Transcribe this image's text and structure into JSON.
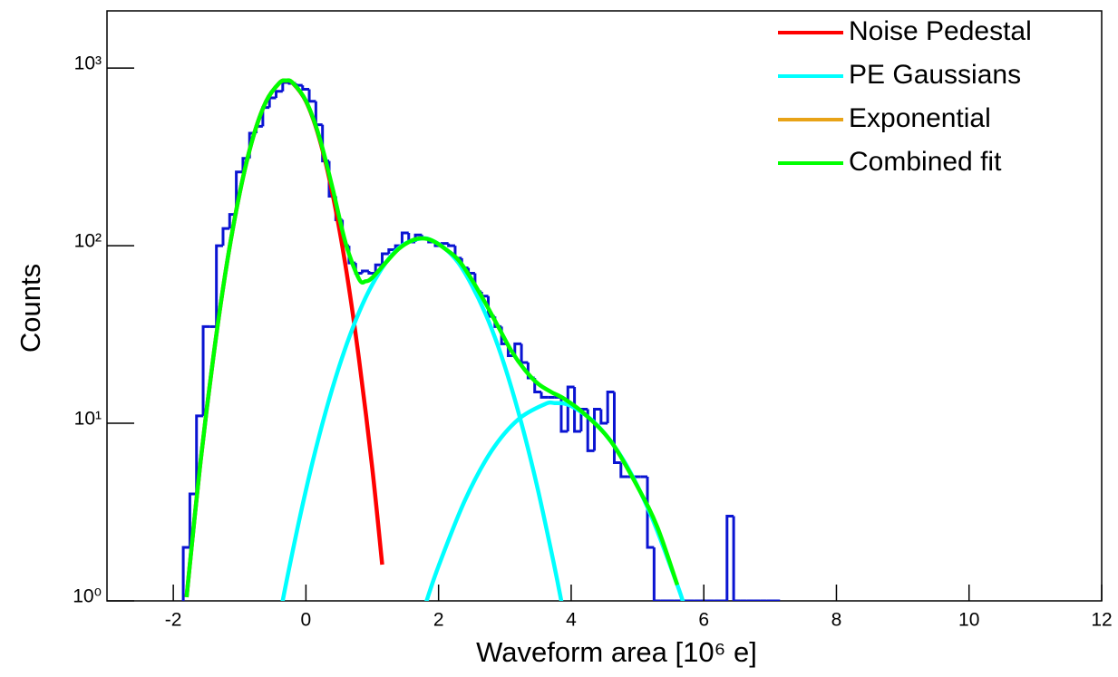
{
  "chart_data": {
    "type": "histogram",
    "xlabel": "Waveform area [10⁶ e]",
    "ylabel": "Counts",
    "xlim": [
      -3,
      12
    ],
    "xticks": [
      -2,
      0,
      2,
      4,
      6,
      8,
      10,
      12
    ],
    "ylim": [
      1,
      2100
    ],
    "yscale": "log",
    "yticks": [
      {
        "value": 1,
        "label": "10⁰"
      },
      {
        "value": 10,
        "label": "10¹"
      },
      {
        "value": 100,
        "label": "10²"
      },
      {
        "value": 1000,
        "label": "10³"
      }
    ],
    "legend": "upper right",
    "histogram": {
      "color": "#0a14d2",
      "bins": [
        -1.85,
        -1.75,
        -1.65,
        -1.55,
        -1.45,
        -1.35,
        -1.25,
        -1.15,
        -1.05,
        -0.95,
        -0.85,
        -0.75,
        -0.65,
        -0.55,
        -0.45,
        -0.35,
        -0.25,
        -0.15,
        -0.05,
        0.05,
        0.15,
        0.25,
        0.35,
        0.45,
        0.55,
        0.65,
        0.75,
        0.85,
        0.95,
        1.05,
        1.15,
        1.25,
        1.35,
        1.45,
        1.55,
        1.65,
        1.75,
        1.85,
        1.95,
        2.05,
        2.15,
        2.25,
        2.35,
        2.45,
        2.55,
        2.65,
        2.75,
        2.85,
        2.95,
        3.05,
        3.15,
        3.25,
        3.35,
        3.45,
        3.55,
        3.65,
        3.75,
        3.85,
        3.95,
        4.05,
        4.15,
        4.25,
        4.35,
        4.45,
        4.55,
        4.65,
        4.75,
        4.85,
        4.95,
        5.05,
        5.15,
        5.25,
        5.35,
        5.45,
        5.55,
        5.65,
        5.75,
        5.85,
        5.95,
        6.05,
        6.15,
        6.25,
        6.35,
        6.45,
        6.55,
        6.65,
        6.75,
        6.85,
        6.95,
        7.05,
        7.15
      ],
      "values": [
        2,
        4,
        11,
        35,
        35,
        100,
        125,
        150,
        260,
        310,
        430,
        470,
        600,
        680,
        740,
        830,
        820,
        800,
        760,
        650,
        480,
        300,
        190,
        140,
        100,
        80,
        70,
        72,
        70,
        78,
        90,
        95,
        100,
        118,
        105,
        115,
        110,
        105,
        100,
        103,
        100,
        85,
        75,
        70,
        55,
        52,
        40,
        35,
        28,
        24,
        28,
        22,
        18,
        15,
        14,
        14,
        14,
        9,
        16,
        9,
        12,
        7,
        12,
        10,
        15,
        6,
        5,
        5,
        5,
        5,
        2,
        1,
        1,
        0,
        0,
        0,
        1,
        1,
        0,
        1,
        0,
        0,
        3,
        0,
        1,
        1,
        1,
        1,
        1,
        1
      ]
    },
    "series": [
      {
        "name": "Noise Pedestal",
        "color": "#ff0000",
        "curves": [
          {
            "x": [
              -1.8,
              -1.6,
              -1.4,
              -1.2,
              -1.0,
              -0.8,
              -0.6,
              -0.4,
              -0.3,
              -0.2,
              0,
              0.2,
              0.4,
              0.6,
              0.8,
              1.0,
              1.15
            ],
            "values": [
              1.05,
              5.6,
              23,
              76,
              197,
              404,
              650,
              825,
              850,
              825,
              650,
              404,
              197,
              76,
              23,
              5.6,
              1.6
            ]
          }
        ]
      },
      {
        "name": "PE Gaussians",
        "color": "#00ffff",
        "curves": [
          {
            "x": [
              -0.4,
              -0.3,
              -0.1,
              0.1,
              0.3,
              0.5,
              0.7,
              0.9,
              1.1,
              1.3,
              1.5,
              1.75,
              1.9,
              2.1,
              2.3,
              2.5,
              2.7,
              2.9,
              3.1,
              3.3,
              3.5,
              3.7,
              3.8,
              3.9
            ],
            "values": [
              0.8,
              1.25,
              2.86,
              6.05,
              11.7,
              20.8,
              34,
              51,
              70,
              89,
              103,
              110,
              107,
              96,
              80,
              60,
              42,
              27,
              15.8,
              8.5,
              4.2,
              1.9,
              1.25,
              0.8
            ]
          },
          {
            "x": [
              1.8,
              2.0,
              2.4,
              2.8,
              3.2,
              3.6,
              3.75,
              4.0,
              4.4,
              4.8,
              5.2,
              5.6,
              5.7
            ],
            "values": [
              0.95,
              1.57,
              3.7,
              7.0,
              10.5,
              12.8,
              13,
              12.5,
              9.7,
              6.1,
              3.05,
              1.23,
              0.95
            ]
          }
        ]
      },
      {
        "name": "Exponential",
        "color": "#e8a317",
        "curves": []
      },
      {
        "name": "Combined fit",
        "color": "#00ff00",
        "curves": [
          {
            "x": [
              -1.8,
              -1.6,
              -1.4,
              -1.2,
              -1.0,
              -0.8,
              -0.6,
              -0.4,
              -0.3,
              -0.2,
              0,
              0.2,
              0.4,
              0.6,
              0.8,
              0.9,
              1.0,
              1.2,
              1.4,
              1.6,
              1.75,
              1.9,
              2.1,
              2.3,
              2.5,
              2.7,
              2.9,
              3.1,
              3.3,
              3.5,
              3.7,
              3.9,
              4.2,
              4.6,
              5.0,
              5.3,
              5.6
            ],
            "values": [
              1.05,
              5.6,
              23,
              76,
              197,
              404,
              650,
              825,
              851,
              827,
              654,
              412,
              212,
              103,
              65,
              63,
              66,
              80,
              96,
              107,
              110,
              107,
              96,
              83,
              64.5,
              48,
              35,
              25.5,
              20,
              16.7,
              15,
              13.7,
              11.3,
              7.9,
              4.4,
              2.6,
              1.23
            ]
          }
        ]
      }
    ]
  }
}
